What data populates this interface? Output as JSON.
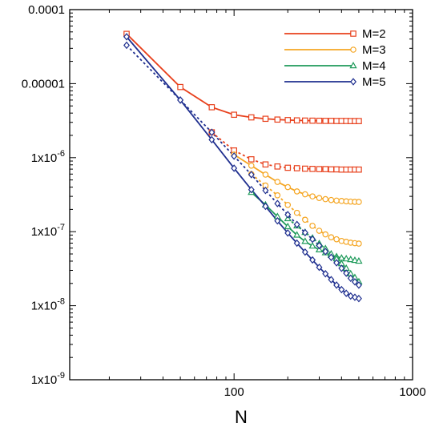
{
  "chart_data": {
    "type": "line",
    "xlabel": "N",
    "ylabel": "",
    "xscale": "log",
    "yscale": "log",
    "xlim": [
      12,
      1000
    ],
    "ylim": [
      1e-09,
      0.0001
    ],
    "grid": false,
    "legend_placement": "top-right",
    "x_tick_labels": [
      {
        "value": 100,
        "label": "100"
      },
      {
        "value": 1000,
        "label": "1000"
      }
    ],
    "y_tick_labels": [
      {
        "value": 0.0001,
        "label": "0.0001"
      },
      {
        "value": 1e-05,
        "label": "0.00001"
      },
      {
        "value": 1e-06,
        "label": "1x10",
        "exp": "-6"
      },
      {
        "value": 1e-07,
        "label": "1x10",
        "exp": "-7"
      },
      {
        "value": 1e-08,
        "label": "1x10",
        "exp": "-8"
      },
      {
        "value": 1e-09,
        "label": "1x10",
        "exp": "-9"
      }
    ],
    "series": [
      {
        "name": "M=2",
        "color": "#e8401c",
        "marker": "square",
        "dash": "solid",
        "legend": true,
        "x": [
          25,
          50,
          75,
          100,
          125,
          150,
          175,
          200,
          225,
          250,
          275,
          300,
          325,
          350,
          375,
          400,
          425,
          450,
          475,
          500
        ],
        "y": [
          4.7e-05,
          9e-06,
          4.8e-06,
          3.8e-06,
          3.5e-06,
          3.35e-06,
          3.27e-06,
          3.22e-06,
          3.19e-06,
          3.17e-06,
          3.16e-06,
          3.15e-06,
          3.14e-06,
          3.14e-06,
          3.13e-06,
          3.13e-06,
          3.13e-06,
          3.12e-06,
          3.12e-06,
          3.12e-06
        ]
      },
      {
        "name": "M=2 (dashed)",
        "color": "#e8401c",
        "marker": "square",
        "dash": "dashed",
        "legend": false,
        "x": [
          75,
          100,
          125,
          150,
          175,
          200,
          225,
          250,
          275,
          300,
          325,
          350,
          375,
          400,
          425,
          450,
          475,
          500
        ],
        "y": [
          2.2e-06,
          1.25e-06,
          9.5e-07,
          8.1e-07,
          7.6e-07,
          7.3e-07,
          7.2e-07,
          7.1e-07,
          7.05e-07,
          7e-07,
          7e-07,
          6.95e-07,
          6.95e-07,
          6.9e-07,
          6.9e-07,
          6.9e-07,
          6.9e-07,
          6.9e-07
        ]
      },
      {
        "name": "M=3",
        "color": "#f5a623",
        "marker": "circle",
        "dash": "solid",
        "legend": true,
        "x": [
          100,
          125,
          150,
          175,
          200,
          225,
          250,
          275,
          300,
          325,
          350,
          375,
          400,
          425,
          450,
          475,
          500
        ],
        "y": [
          1.1e-06,
          7.8e-07,
          5.9e-07,
          4.7e-07,
          4e-07,
          3.5e-07,
          3.2e-07,
          3e-07,
          2.85e-07,
          2.75e-07,
          2.68e-07,
          2.63e-07,
          2.6e-07,
          2.57e-07,
          2.55e-07,
          2.53e-07,
          2.52e-07
        ]
      },
      {
        "name": "M=3 (dashed)",
        "color": "#f5a623",
        "marker": "circle",
        "dash": "dashed",
        "legend": false,
        "x": [
          125,
          150,
          175,
          200,
          225,
          250,
          275,
          300,
          325,
          350,
          375,
          400,
          425,
          450,
          475,
          500
        ],
        "y": [
          6e-07,
          4.2e-07,
          3.1e-07,
          2.3e-07,
          1.8e-07,
          1.45e-07,
          1.2e-07,
          1.03e-07,
          9.2e-08,
          8.4e-08,
          7.9e-08,
          7.5e-08,
          7.3e-08,
          7.1e-08,
          7e-08,
          6.9e-08
        ]
      },
      {
        "name": "M=4",
        "color": "#1e9a5a",
        "marker": "triangle",
        "dash": "solid",
        "legend": true,
        "x": [
          125,
          150,
          175,
          200,
          225,
          250,
          275,
          300,
          325,
          350,
          375,
          400,
          425,
          450,
          475,
          500
        ],
        "y": [
          3.4e-07,
          2.3e-07,
          1.6e-07,
          1.17e-07,
          9e-08,
          7.4e-08,
          6.4e-08,
          5.7e-08,
          5.2e-08,
          4.8e-08,
          4.6e-08,
          4.4e-08,
          4.3e-08,
          4.2e-08,
          4.1e-08,
          4e-08
        ]
      },
      {
        "name": "M=4 (dashed)",
        "color": "#1e9a5a",
        "marker": "triangle",
        "dash": "dashed",
        "legend": false,
        "x": [
          200,
          225,
          250,
          275,
          300,
          325,
          350,
          375,
          400,
          425,
          450,
          475,
          500
        ],
        "y": [
          1.5e-07,
          1.2e-07,
          9.8e-08,
          8.2e-08,
          6.9e-08,
          5.9e-08,
          5e-08,
          4.3e-08,
          3.7e-08,
          3.2e-08,
          2.7e-08,
          2.4e-08,
          2.1e-08
        ]
      },
      {
        "name": "M=5",
        "color": "#1f2f8f",
        "marker": "diamond",
        "dash": "solid",
        "legend": true,
        "x": [
          25,
          50,
          75,
          100,
          125,
          150,
          175,
          200,
          225,
          250,
          275,
          300,
          325,
          350,
          375,
          400,
          425,
          450,
          475,
          500
        ],
        "y": [
          4.3e-05,
          6e-06,
          1.75e-06,
          7.2e-07,
          3.7e-07,
          2.2e-07,
          1.4e-07,
          9.6e-08,
          7e-08,
          5.3e-08,
          4.15e-08,
          3.3e-08,
          2.7e-08,
          2.25e-08,
          1.9e-08,
          1.65e-08,
          1.47e-08,
          1.35e-08,
          1.3e-08,
          1.25e-08
        ]
      },
      {
        "name": "M=5 (dashed)",
        "color": "#1f2f8f",
        "marker": "diamond",
        "dash": "dashed",
        "legend": false,
        "x": [
          25,
          50,
          75,
          100,
          125,
          150,
          175,
          200,
          225,
          250,
          275,
          300,
          325,
          350,
          375,
          400,
          425,
          450,
          475,
          500
        ],
        "y": [
          3.3e-05,
          6e-06,
          2.2e-06,
          1.05e-06,
          5.9e-07,
          3.6e-07,
          2.4e-07,
          1.7e-07,
          1.25e-07,
          9.7e-08,
          7.9e-08,
          6.5e-08,
          5.4e-08,
          4.5e-08,
          3.8e-08,
          3.2e-08,
          2.75e-08,
          2.35e-08,
          2.1e-08,
          1.9e-08
        ]
      }
    ]
  }
}
